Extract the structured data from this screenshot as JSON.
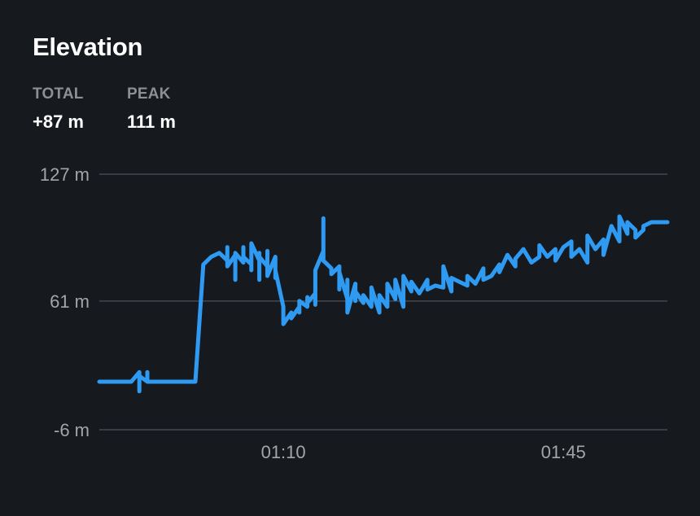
{
  "header": {
    "title": "Elevation"
  },
  "stats": {
    "total_label": "TOTAL",
    "total_value": "+87 m",
    "peak_label": "PEAK",
    "peak_value": "111 m"
  },
  "colors": {
    "background": "#16191e",
    "line": "#2e9af2",
    "grid": "#45484f",
    "tick_text": "#a4a5aa"
  },
  "chart_data": {
    "type": "line",
    "title": "Elevation",
    "xlabel": "",
    "ylabel": "",
    "y_unit": "m",
    "ylim": [
      -6,
      127
    ],
    "yticks": [
      {
        "value": 127,
        "label": "127 m"
      },
      {
        "value": 61,
        "label": "61 m"
      },
      {
        "value": -6,
        "label": "-6 m"
      }
    ],
    "xlim": [
      "00:47",
      "01:58"
    ],
    "xticks": [
      {
        "value": "01:10",
        "label": "01:10"
      },
      {
        "value": "01:45",
        "label": "01:45"
      }
    ],
    "grid": true,
    "series": [
      {
        "x": [
          "00:47",
          "00:51",
          "00:52",
          "00:52",
          "00:52",
          "00:53",
          "00:53",
          "00:53",
          "00:54",
          "00:59",
          "01:00",
          "01:01",
          "01:02",
          "01:03",
          "01:03",
          "01:03",
          "01:04",
          "01:04",
          "01:04",
          "01:05",
          "01:05",
          "01:05",
          "01:06",
          "01:06",
          "01:06",
          "01:06",
          "01:07",
          "01:07",
          "01:07",
          "01:07",
          "01:08",
          "01:08",
          "01:08",
          "01:09",
          "01:09",
          "01:09",
          "01:10",
          "01:10",
          "01:10",
          "01:11",
          "01:11",
          "01:12",
          "01:12",
          "01:12",
          "01:13",
          "01:13",
          "01:13",
          "01:14",
          "01:14",
          "01:14",
          "01:15",
          "01:15",
          "01:15",
          "01:15",
          "01:16",
          "01:16",
          "01:17",
          "01:17",
          "01:17",
          "01:18",
          "01:18",
          "01:18",
          "01:19",
          "01:19",
          "01:19",
          "01:20",
          "01:20",
          "01:21",
          "01:21",
          "01:22",
          "01:22",
          "01:23",
          "01:23",
          "01:24",
          "01:24",
          "01:25",
          "01:25",
          "01:26",
          "01:26",
          "01:27",
          "01:28",
          "01:28",
          "01:29",
          "01:30",
          "01:30",
          "01:31",
          "01:31",
          "01:32",
          "01:33",
          "01:33",
          "01:34",
          "01:35",
          "01:35",
          "01:36",
          "01:37",
          "01:37",
          "01:38",
          "01:39",
          "01:39",
          "01:40",
          "01:41",
          "01:42",
          "01:42",
          "01:43",
          "01:44",
          "01:44",
          "01:45",
          "01:46",
          "01:46",
          "01:47",
          "01:48",
          "01:48",
          "01:49",
          "01:50",
          "01:50",
          "01:51",
          "01:52",
          "01:52",
          "01:53",
          "01:53",
          "01:54",
          "01:54",
          "01:55",
          "01:55",
          "01:56",
          "01:57",
          "01:58"
        ],
        "y": [
          19,
          19,
          24,
          14,
          22,
          19,
          24,
          19,
          19,
          19,
          80,
          84,
          86,
          82,
          89,
          79,
          85,
          72,
          86,
          81,
          89,
          84,
          80,
          88,
          77,
          91,
          82,
          86,
          72,
          84,
          79,
          87,
          74,
          84,
          73,
          77,
          58,
          54,
          49,
          55,
          52,
          58,
          55,
          61,
          58,
          63,
          60,
          65,
          59,
          77,
          87,
          104,
          95,
          82,
          78,
          75,
          79,
          67,
          76,
          62,
          72,
          55,
          70,
          61,
          66,
          60,
          64,
          58,
          68,
          55,
          64,
          58,
          70,
          62,
          72,
          58,
          74,
          66,
          71,
          65,
          72,
          67,
          69,
          68,
          79,
          66,
          73,
          71,
          69,
          74,
          70,
          78,
          72,
          74,
          80,
          76,
          85,
          79,
          83,
          88,
          81,
          84,
          90,
          84,
          88,
          82,
          89,
          92,
          84,
          88,
          81,
          95,
          88,
          93,
          85,
          100,
          92,
          105,
          96,
          102,
          98,
          94,
          98,
          100,
          102,
          102,
          102
        ],
        "color": "#2e9af2"
      }
    ]
  }
}
